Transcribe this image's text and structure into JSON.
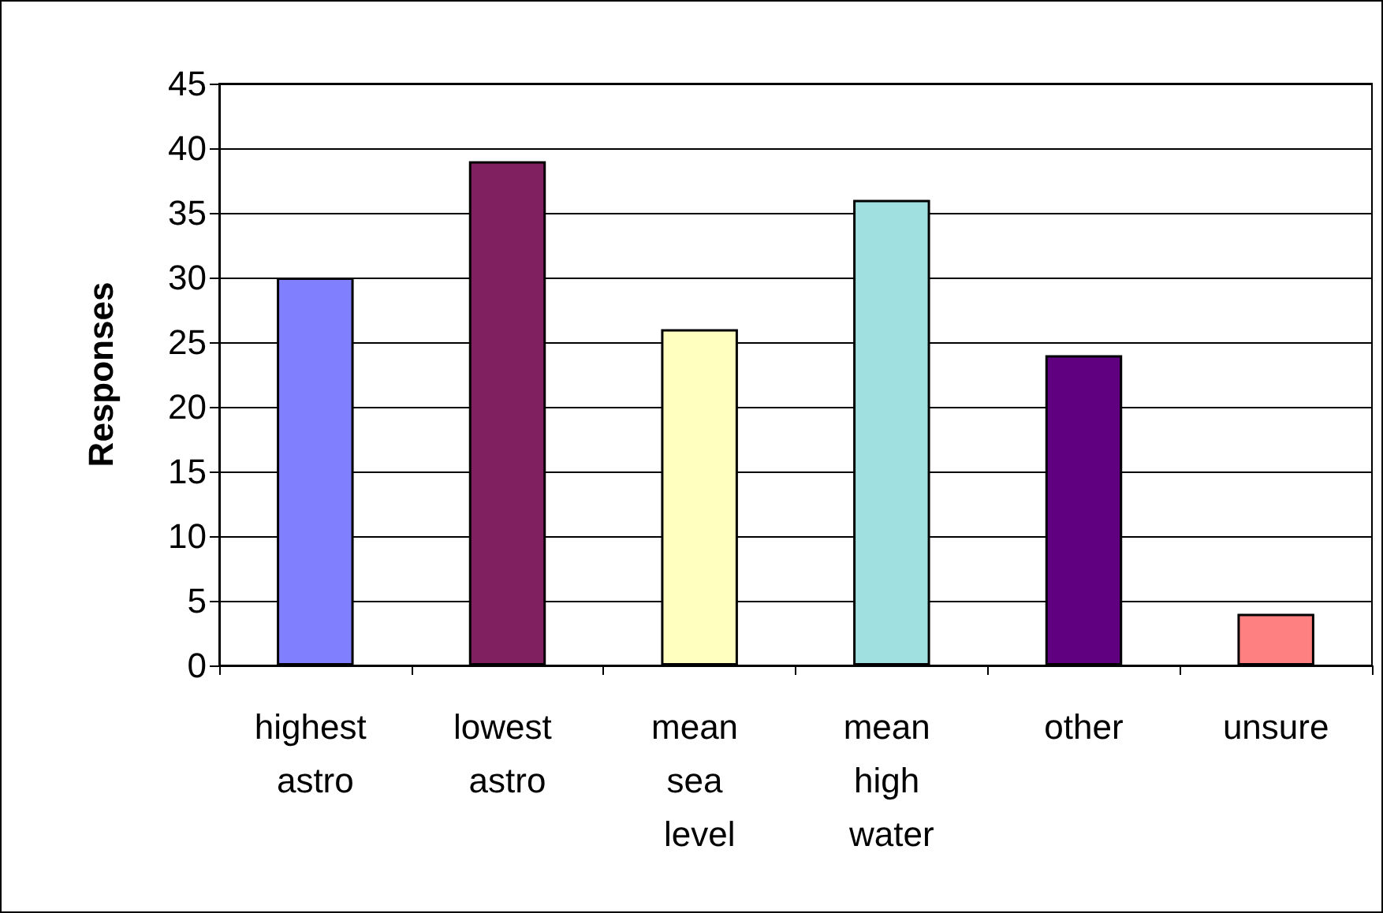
{
  "chart_data": {
    "type": "bar",
    "ylabel": "Responses",
    "categories": [
      "highest astro",
      "lowest astro",
      "mean sea level",
      "mean high water",
      "other",
      "unsure"
    ],
    "values": [
      30,
      39,
      26,
      36,
      24,
      4
    ],
    "colors": [
      "#8080ff",
      "#802060",
      "#ffffc0",
      "#a0e0e0",
      "#600080",
      "#ff8080"
    ],
    "ylim": [
      0,
      45
    ],
    "yticks": [
      0,
      5,
      10,
      15,
      20,
      25,
      30,
      35,
      40,
      45
    ],
    "grid": "y"
  }
}
